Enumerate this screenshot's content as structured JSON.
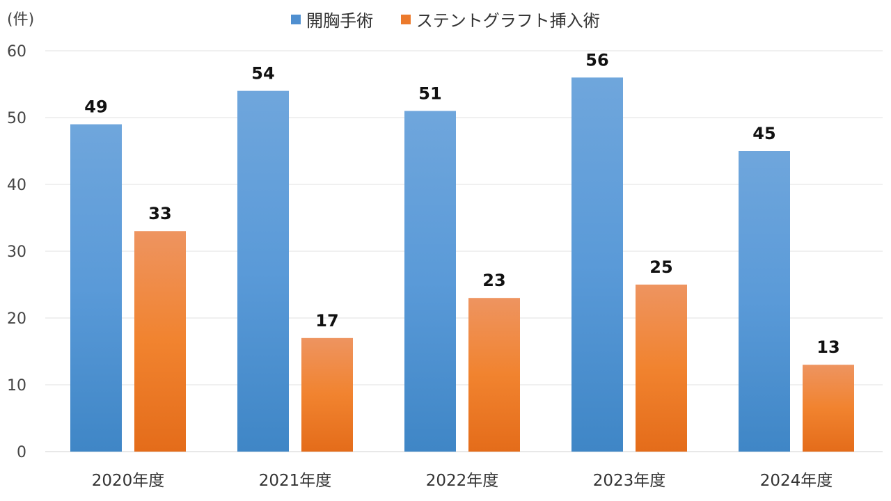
{
  "chart_data": {
    "type": "bar",
    "unit_label": "(件)",
    "categories": [
      "2020年度",
      "2021年度",
      "2022年度",
      "2023年度",
      "2024年度"
    ],
    "series": [
      {
        "name": "開胸手術",
        "values": [
          49,
          54,
          51,
          56,
          45
        ],
        "color": "#5B9BD5"
      },
      {
        "name": "ステントグラフト挿入術",
        "values": [
          33,
          17,
          23,
          25,
          13
        ],
        "color": "#ED7D31"
      }
    ],
    "ylim": [
      0,
      60
    ],
    "yticks": [
      0,
      10,
      20,
      30,
      40,
      50,
      60
    ],
    "grid": true,
    "legend_position": "top-center",
    "data_labels": true
  }
}
